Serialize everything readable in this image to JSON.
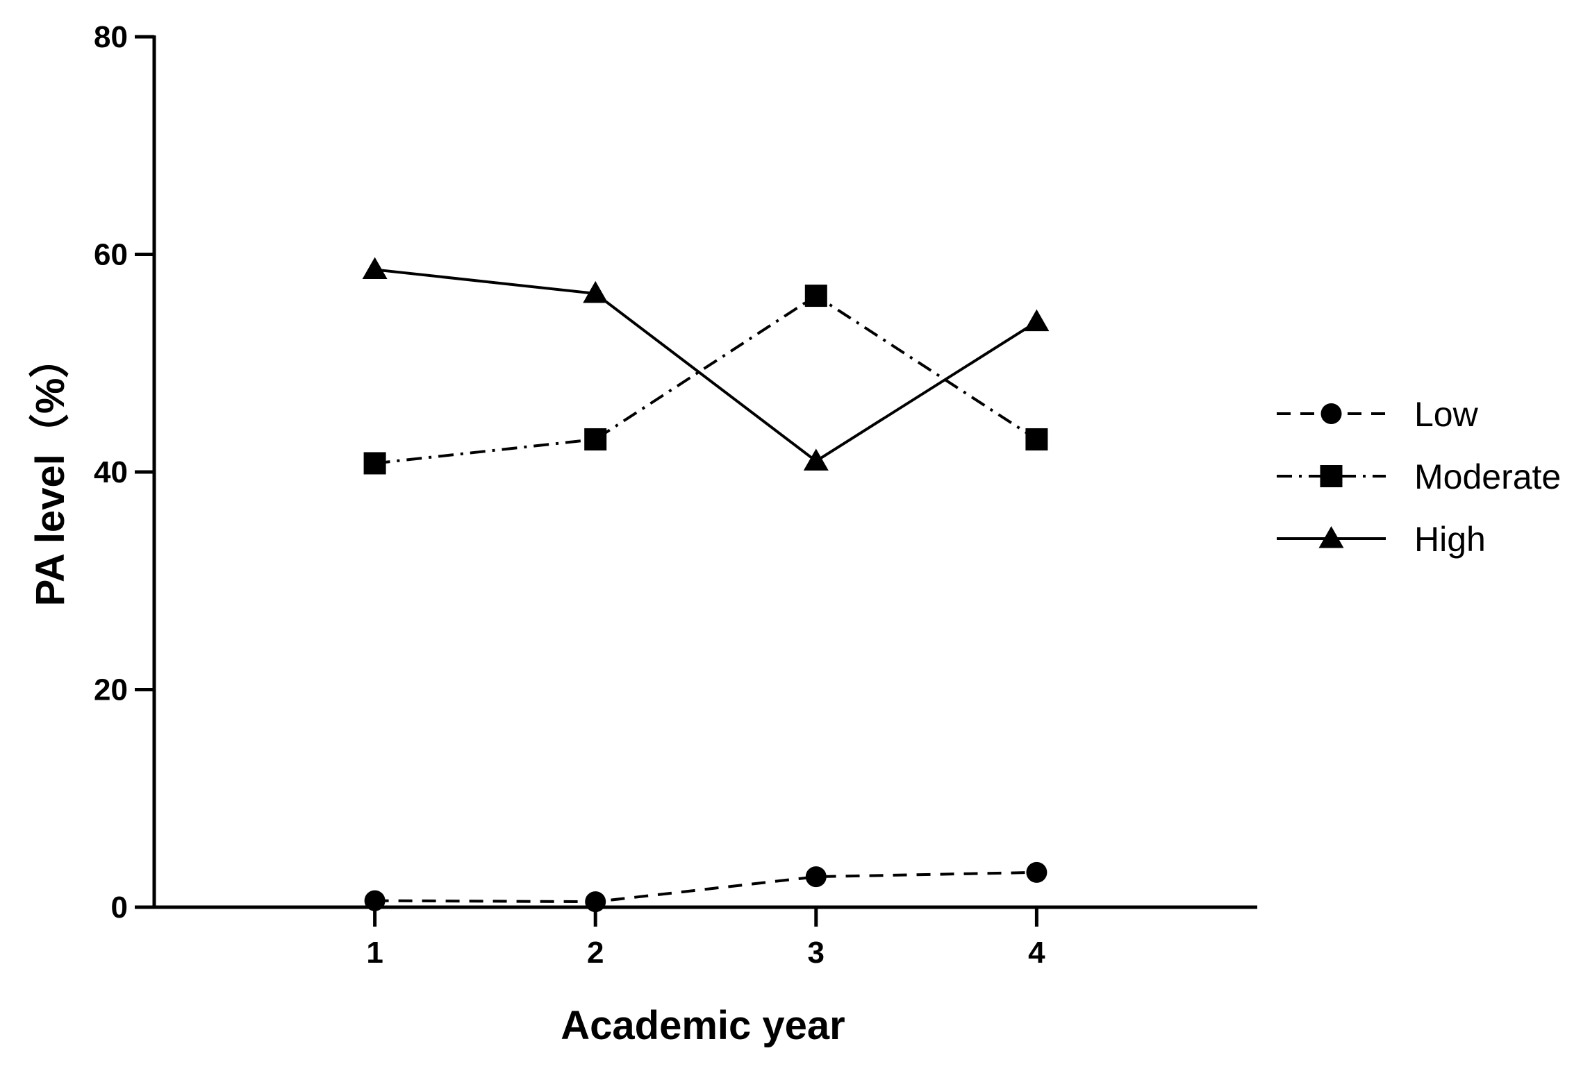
{
  "chart_data": {
    "type": "line",
    "x": [
      1,
      2,
      3,
      4
    ],
    "xlabel": "Academic year",
    "ylabel": "PA level（%）",
    "xlim": [
      0,
      5
    ],
    "ylim": [
      0,
      80
    ],
    "yticks": [
      0,
      20,
      40,
      60,
      80
    ],
    "xticks": [
      1,
      2,
      3,
      4
    ],
    "grid": false,
    "legend_position": "right",
    "series": [
      {
        "name": "Low",
        "values": [
          0.6,
          0.5,
          2.8,
          3.2
        ],
        "marker": "circle",
        "line_style": "dashed"
      },
      {
        "name": "Moderate",
        "values": [
          40.8,
          43.0,
          56.2,
          43.0
        ],
        "marker": "square",
        "line_style": "dash-dot"
      },
      {
        "name": "High",
        "values": [
          58.6,
          56.4,
          41.0,
          53.8
        ],
        "marker": "triangle",
        "line_style": "solid"
      }
    ]
  }
}
